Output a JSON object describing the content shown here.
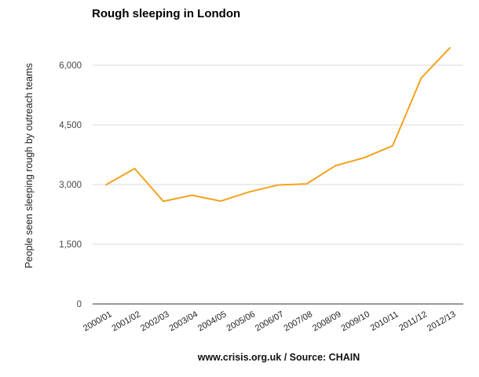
{
  "chart_data": {
    "type": "line",
    "title": "Rough sleeping in London",
    "xlabel": "",
    "ylabel": "People seen sleeping rough by outreach teams",
    "footer": "www.crisis.org.uk / Source: CHAIN",
    "categories": [
      "2000/01",
      "2001/02",
      "2002/03",
      "2003/04",
      "2004/05",
      "2005/06",
      "2006/07",
      "2007/08",
      "2008/09",
      "2009/10",
      "2010/11",
      "2011/12",
      "2012/13"
    ],
    "series": [
      {
        "values": [
          2996,
          3402,
          2580,
          2731,
          2585,
          2816,
          2989,
          3017,
          3472,
          3673,
          3975,
          5678,
          6437
        ],
        "color": "#f4a21c"
      }
    ],
    "ylim": [
      0,
      6437
    ],
    "yticks": [
      0,
      1500,
      3000,
      4500,
      6000
    ],
    "ytick_labels": [
      "0",
      "1,500",
      "3,000",
      "4,500",
      "6,000"
    ],
    "grid": true,
    "legend": "none"
  }
}
